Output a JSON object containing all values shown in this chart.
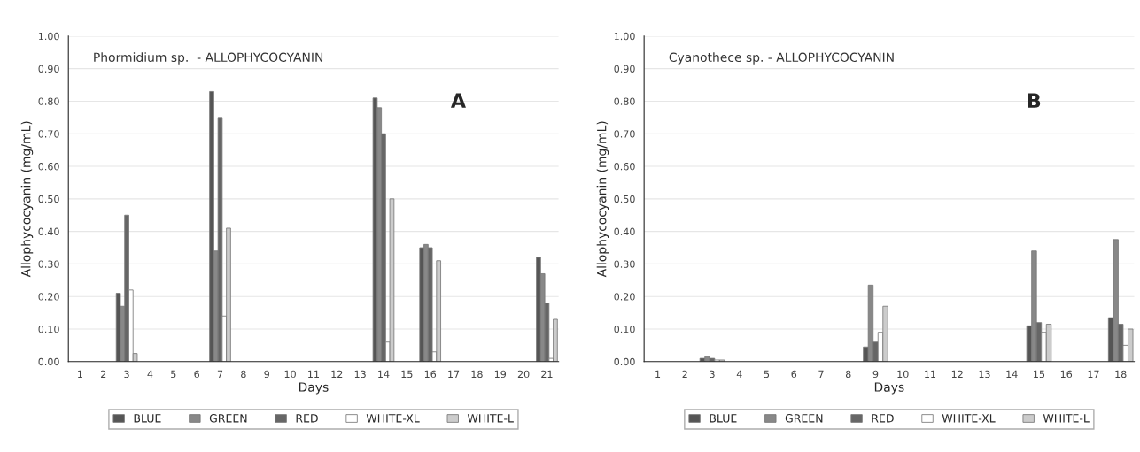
{
  "chart_data": [
    {
      "type": "bar",
      "title": "Phormidium sp.  - ALLOPHYCOCYANIN",
      "xlabel": "Days",
      "ylabel": "Allophycocyanin (mg/mL)",
      "annotations": [
        "A"
      ],
      "categories": [
        "1",
        "2",
        "3",
        "4",
        "5",
        "6",
        "7",
        "8",
        "9",
        "10",
        "11",
        "12",
        "13",
        "14",
        "15",
        "16",
        "17",
        "18",
        "19",
        "20",
        "21"
      ],
      "series": [
        {
          "name": "BLUE",
          "color": "#555555",
          "values": [
            0,
            0,
            0.21,
            0,
            0,
            0,
            0.83,
            0,
            0,
            0,
            0,
            0,
            0,
            0.81,
            0,
            0.35,
            0,
            0,
            0,
            0,
            0.32
          ]
        },
        {
          "name": "GREEN",
          "color": "#888888",
          "values": [
            0,
            0,
            0.17,
            0,
            0,
            0,
            0.34,
            0,
            0,
            0,
            0,
            0,
            0,
            0.78,
            0,
            0.36,
            0,
            0,
            0,
            0,
            0.27
          ]
        },
        {
          "name": "RED",
          "color": "#666666",
          "values": [
            0,
            0,
            0.45,
            0,
            0,
            0,
            0.75,
            0,
            0,
            0,
            0,
            0,
            0,
            0.7,
            0,
            0.35,
            0,
            0,
            0,
            0,
            0.18
          ]
        },
        {
          "name": "WHITE-XL",
          "color": "#ffffff",
          "values": [
            0,
            0,
            0.22,
            0,
            0,
            0,
            0.14,
            0,
            0,
            0,
            0,
            0,
            0,
            0.06,
            0,
            0.03,
            0,
            0,
            0,
            0,
            0.01
          ]
        },
        {
          "name": "WHITE-L",
          "color": "#cccccc",
          "values": [
            0,
            0,
            0.025,
            0,
            0,
            0,
            0.41,
            0,
            0,
            0,
            0,
            0,
            0,
            0.5,
            0,
            0.31,
            0,
            0,
            0,
            0,
            0.13
          ]
        }
      ],
      "ylim": [
        0,
        1
      ],
      "yticks": [
        {
          "value": 0,
          "label": "0.00"
        },
        {
          "value": 0.1,
          "label": "0.10"
        },
        {
          "value": 0.2,
          "label": "0.20"
        },
        {
          "value": 0.3,
          "label": "0.30"
        },
        {
          "value": 0.4,
          "label": "0.40"
        },
        {
          "value": 0.5,
          "label": "0.50"
        },
        {
          "value": 0.6,
          "label": "0.60"
        },
        {
          "value": 0.7,
          "label": "0.70"
        },
        {
          "value": 0.8,
          "label": "0.80"
        },
        {
          "value": 0.9,
          "label": "0.90"
        },
        {
          "value": 1,
          "label": "1.00"
        }
      ],
      "grid": "y",
      "legend": "bottom"
    },
    {
      "type": "bar",
      "title": "Cyanothece sp. - ALLOPHYCOCYANIN",
      "xlabel": "Days",
      "ylabel": "Allophycocyanin (mg/mL)",
      "annotations": [
        "B"
      ],
      "categories": [
        "1",
        "2",
        "3",
        "4",
        "5",
        "6",
        "7",
        "8",
        "9",
        "10",
        "11",
        "12",
        "13",
        "14",
        "15",
        "16",
        "17",
        "18"
      ],
      "series": [
        {
          "name": "BLUE",
          "color": "#555555",
          "values": [
            0,
            0,
            0.01,
            0,
            0,
            0,
            0,
            0,
            0.045,
            0,
            0,
            0,
            0,
            0,
            0.11,
            0,
            0,
            0.135
          ]
        },
        {
          "name": "GREEN",
          "color": "#888888",
          "values": [
            0,
            0,
            0.015,
            0,
            0,
            0,
            0,
            0,
            0.235,
            0,
            0,
            0,
            0,
            0,
            0.34,
            0,
            0,
            0.375
          ]
        },
        {
          "name": "RED",
          "color": "#666666",
          "values": [
            0,
            0,
            0.01,
            0,
            0,
            0,
            0,
            0,
            0.06,
            0,
            0,
            0,
            0,
            0,
            0.12,
            0,
            0,
            0.115
          ]
        },
        {
          "name": "WHITE-XL",
          "color": "#ffffff",
          "values": [
            0,
            0,
            0.005,
            0,
            0,
            0,
            0,
            0,
            0.09,
            0,
            0,
            0,
            0,
            0,
            0.09,
            0,
            0,
            0.05
          ]
        },
        {
          "name": "WHITE-L",
          "color": "#cccccc",
          "values": [
            0,
            0,
            0.005,
            0,
            0,
            0,
            0,
            0,
            0.17,
            0,
            0,
            0,
            0,
            0,
            0.115,
            0,
            0,
            0.1
          ]
        }
      ],
      "ylim": [
        0,
        1
      ],
      "yticks": [
        {
          "value": 0,
          "label": "0.00"
        },
        {
          "value": 0.1,
          "label": "0.10"
        },
        {
          "value": 0.2,
          "label": "0.20"
        },
        {
          "value": 0.3,
          "label": "0.30"
        },
        {
          "value": 0.4,
          "label": "0.40"
        },
        {
          "value": 0.5,
          "label": "0.50"
        },
        {
          "value": 0.6,
          "label": "0.60"
        },
        {
          "value": 0.7,
          "label": "0.70"
        },
        {
          "value": 0.8,
          "label": "0.80"
        },
        {
          "value": 0.9,
          "label": "0.90"
        },
        {
          "value": 1,
          "label": "1.00"
        }
      ],
      "grid": "y",
      "legend": "bottom"
    }
  ]
}
